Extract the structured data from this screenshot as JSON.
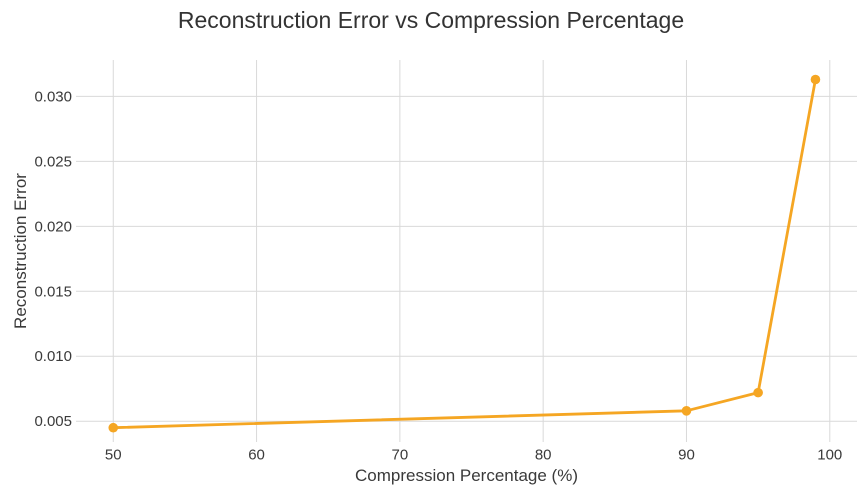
{
  "chart_data": {
    "type": "line",
    "title": "Reconstruction Error vs Compression Percentage",
    "xlabel": "Compression Percentage (%)",
    "ylabel": "Reconstruction Error",
    "x": [
      50,
      90,
      95,
      99
    ],
    "y": [
      0.0045,
      0.0058,
      0.0072,
      0.0313
    ],
    "xlim": [
      47.4,
      101.9
    ],
    "ylim": [
      0.0034,
      0.0328
    ],
    "x_ticks": [
      50,
      60,
      70,
      80,
      90,
      100
    ],
    "x_tick_labels": [
      "50",
      "60",
      "70",
      "80",
      "90",
      "100"
    ],
    "y_ticks": [
      0.005,
      0.01,
      0.015,
      0.02,
      0.025,
      0.03
    ],
    "y_tick_labels": [
      "0.005",
      "0.010",
      "0.015",
      "0.020",
      "0.025",
      "0.030"
    ],
    "grid": true,
    "legend_position": "none",
    "marker_shape": "circle",
    "colors": {
      "line": "#F5A623",
      "marker": "#F5A623",
      "grid": "#D9D9D9",
      "tick_text": "#3A3A3A",
      "label_text": "#3A3A3A",
      "title_text": "#333333",
      "background": "#FFFFFF"
    }
  }
}
